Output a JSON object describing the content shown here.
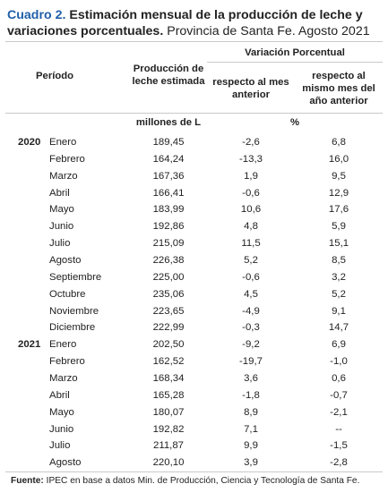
{
  "title": {
    "label": "Cuadro 2.",
    "bold": "Estimación mensual de la producción de leche y variaciones porcentuales.",
    "normal": "Provincia de Santa Fe. Agosto 2021"
  },
  "header": {
    "periodo": "Período",
    "produccion": "Producción de leche estimada",
    "group": "Variación Porcentual",
    "mes": "respecto al mes anterior",
    "anio": "respecto al mismo mes del año anterior"
  },
  "units": {
    "produccion": "millones de L",
    "porcentaje": "%"
  },
  "rows": [
    {
      "year": "2020",
      "month": "Enero",
      "prod": "189,45",
      "mes": "-2,6",
      "anio": "6,8"
    },
    {
      "year": "",
      "month": "Febrero",
      "prod": "164,24",
      "mes": "-13,3",
      "anio": "16,0"
    },
    {
      "year": "",
      "month": "Marzo",
      "prod": "167,36",
      "mes": "1,9",
      "anio": "9,5"
    },
    {
      "year": "",
      "month": "Abril",
      "prod": "166,41",
      "mes": "-0,6",
      "anio": "12,9"
    },
    {
      "year": "",
      "month": "Mayo",
      "prod": "183,99",
      "mes": "10,6",
      "anio": "17,6"
    },
    {
      "year": "",
      "month": "Junio",
      "prod": "192,86",
      "mes": "4,8",
      "anio": "5,9"
    },
    {
      "year": "",
      "month": "Julio",
      "prod": "215,09",
      "mes": "11,5",
      "anio": "15,1"
    },
    {
      "year": "",
      "month": "Agosto",
      "prod": "226,38",
      "mes": "5,2",
      "anio": "8,5"
    },
    {
      "year": "",
      "month": "Septiembre",
      "prod": "225,00",
      "mes": "-0,6",
      "anio": "3,2"
    },
    {
      "year": "",
      "month": "Octubre",
      "prod": "235,06",
      "mes": "4,5",
      "anio": "5,2"
    },
    {
      "year": "",
      "month": "Noviembre",
      "prod": "223,65",
      "mes": "-4,9",
      "anio": "9,1"
    },
    {
      "year": "",
      "month": "Diciembre",
      "prod": "222,99",
      "mes": "-0,3",
      "anio": "14,7"
    },
    {
      "year": "2021",
      "month": "Enero",
      "prod": "202,50",
      "mes": "-9,2",
      "anio": "6,9"
    },
    {
      "year": "",
      "month": "Febrero",
      "prod": "162,52",
      "mes": "-19,7",
      "anio": "-1,0"
    },
    {
      "year": "",
      "month": "Marzo",
      "prod": "168,34",
      "mes": "3,6",
      "anio": "0,6"
    },
    {
      "year": "",
      "month": "Abril",
      "prod": "165,28",
      "mes": "-1,8",
      "anio": "-0,7"
    },
    {
      "year": "",
      "month": "Mayo",
      "prod": "180,07",
      "mes": "8,9",
      "anio": "-2,1"
    },
    {
      "year": "",
      "month": "Junio",
      "prod": "192,82",
      "mes": "7,1",
      "anio": "--"
    },
    {
      "year": "",
      "month": "Julio",
      "prod": "211,87",
      "mes": "9,9",
      "anio": "-1,5"
    },
    {
      "year": "",
      "month": "Agosto",
      "prod": "220,10",
      "mes": "3,9",
      "anio": "-2,8"
    }
  ],
  "footnote": {
    "label": "Fuente:",
    "text": "IPEC en base a datos Min. de Producción, Ciencia y Tecnología de Santa Fe."
  }
}
